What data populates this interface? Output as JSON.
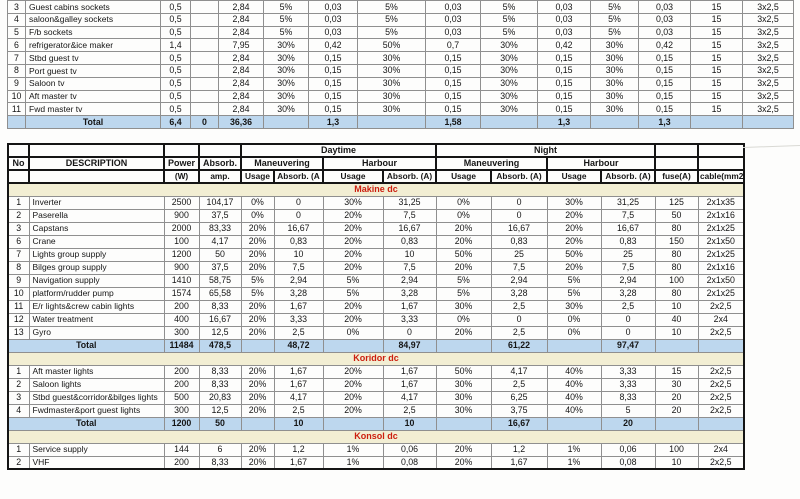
{
  "colors": {
    "total_row_bg": "#bdd7ee",
    "section_band_bg": "#f2eed3",
    "section_title_text": "#cc1e0e",
    "grid_line": "#8f8f8f",
    "table_frame": "#141414"
  },
  "table1": {
    "rows": [
      [
        "3",
        "Guest cabins sockets",
        "0,5",
        "",
        "2,84",
        "5%",
        "0,03",
        "5%",
        "0,03",
        "5%",
        "0,03",
        "5%",
        "0,03",
        "15",
        "3x2,5"
      ],
      [
        "4",
        "saloon&galley sockets",
        "0,5",
        "",
        "2,84",
        "5%",
        "0,03",
        "5%",
        "0,03",
        "5%",
        "0,03",
        "5%",
        "0,03",
        "15",
        "3x2,5"
      ],
      [
        "5",
        "F/b sockets",
        "0,5",
        "",
        "2,84",
        "5%",
        "0,03",
        "5%",
        "0,03",
        "5%",
        "0,03",
        "5%",
        "0,03",
        "15",
        "3x2,5"
      ],
      [
        "6",
        "refrigerator&ice maker",
        "1,4",
        "",
        "7,95",
        "30%",
        "0,42",
        "50%",
        "0,7",
        "30%",
        "0,42",
        "30%",
        "0,42",
        "15",
        "3x2,5"
      ],
      [
        "7",
        "Stbd guest tv",
        "0,5",
        "",
        "2,84",
        "30%",
        "0,15",
        "30%",
        "0,15",
        "30%",
        "0,15",
        "30%",
        "0,15",
        "15",
        "3x2,5"
      ],
      [
        "8",
        "Port guest tv",
        "0,5",
        "",
        "2,84",
        "30%",
        "0,15",
        "30%",
        "0,15",
        "30%",
        "0,15",
        "30%",
        "0,15",
        "15",
        "3x2,5"
      ],
      [
        "9",
        "Saloon tv",
        "0,5",
        "",
        "2,84",
        "30%",
        "0,15",
        "30%",
        "0,15",
        "30%",
        "0,15",
        "30%",
        "0,15",
        "15",
        "3x2,5"
      ],
      [
        "10",
        "Aft master tv",
        "0,5",
        "",
        "2,84",
        "30%",
        "0,15",
        "30%",
        "0,15",
        "30%",
        "0,15",
        "30%",
        "0,15",
        "15",
        "3x2,5"
      ],
      [
        "11",
        "Fwd master tv",
        "0,5",
        "",
        "2,84",
        "30%",
        "0,15",
        "30%",
        "0,15",
        "30%",
        "0,15",
        "30%",
        "0,15",
        "15",
        "3x2,5"
      ]
    ],
    "total": [
      "",
      "Total",
      "6,4",
      "0",
      "36,36",
      "",
      "1,3",
      "",
      "1,58",
      "",
      "1,3",
      "",
      "1,3",
      "",
      ""
    ]
  },
  "table2": {
    "header": {
      "daytime": "Daytime",
      "night": "Night",
      "no": "No",
      "description": "DESCRIPTION",
      "power": "Power",
      "power_unit": "(W)",
      "absorb": "Absorb.",
      "absorb_unit": "amp.",
      "maneuvering": "Maneuvering",
      "harbour": "Harbour",
      "usage": "Usage",
      "absorb_a_first": "Absorb. (A",
      "absorb_a": "Absorb. (A)",
      "fuse": "fuse(A)",
      "cable": "cable(mm2)"
    },
    "sections": [
      {
        "title": "Makine dc",
        "rows": [
          [
            "1",
            "Inverter",
            "2500",
            "104,17",
            "0%",
            "0",
            "30%",
            "31,25",
            "0%",
            "0",
            "30%",
            "31,25",
            "125",
            "2x1x35"
          ],
          [
            "2",
            "Paserella",
            "900",
            "37,5",
            "0%",
            "0",
            "20%",
            "7,5",
            "0%",
            "0",
            "20%",
            "7,5",
            "50",
            "2x1x16"
          ],
          [
            "3",
            "Capstans",
            "2000",
            "83,33",
            "20%",
            "16,67",
            "20%",
            "16,67",
            "20%",
            "16,67",
            "20%",
            "16,67",
            "80",
            "2x1x25"
          ],
          [
            "6",
            "Crane",
            "100",
            "4,17",
            "20%",
            "0,83",
            "20%",
            "0,83",
            "20%",
            "0,83",
            "20%",
            "0,83",
            "150",
            "2x1x50"
          ],
          [
            "7",
            "Lights group supply",
            "1200",
            "50",
            "20%",
            "10",
            "20%",
            "10",
            "50%",
            "25",
            "50%",
            "25",
            "80",
            "2x1x25"
          ],
          [
            "8",
            "Bilges group supply",
            "900",
            "37,5",
            "20%",
            "7,5",
            "20%",
            "7,5",
            "20%",
            "7,5",
            "20%",
            "7,5",
            "80",
            "2x1x16"
          ],
          [
            "9",
            "Navigation supply",
            "1410",
            "58,75",
            "5%",
            "2,94",
            "5%",
            "2,94",
            "5%",
            "2,94",
            "5%",
            "2,94",
            "100",
            "2x1x50"
          ],
          [
            "10",
            "platform/rudder pump",
            "1574",
            "65,58",
            "5%",
            "3,28",
            "5%",
            "3,28",
            "5%",
            "3,28",
            "5%",
            "3,28",
            "80",
            "2x1x25"
          ],
          [
            "11",
            "E/r lights&crew cabin lights",
            "200",
            "8,33",
            "20%",
            "1,67",
            "20%",
            "1,67",
            "30%",
            "2,5",
            "30%",
            "2,5",
            "10",
            "2x2,5"
          ],
          [
            "12",
            "Water treatment",
            "400",
            "16,67",
            "20%",
            "3,33",
            "20%",
            "3,33",
            "0%",
            "0",
            "0%",
            "0",
            "40",
            "2x4"
          ],
          [
            "13",
            "Gyro",
            "300",
            "12,5",
            "20%",
            "2,5",
            "0%",
            "0",
            "20%",
            "2,5",
            "0%",
            "0",
            "10",
            "2x2,5"
          ]
        ],
        "total": [
          "Total",
          "11484",
          "478,5",
          "",
          "48,72",
          "",
          "84,97",
          "",
          "61,22",
          "",
          "97,47",
          "",
          ""
        ]
      },
      {
        "title": "Koridor dc",
        "rows": [
          [
            "1",
            "Aft master lights",
            "200",
            "8,33",
            "20%",
            "1,67",
            "20%",
            "1,67",
            "50%",
            "4,17",
            "40%",
            "3,33",
            "15",
            "2x2,5"
          ],
          [
            "2",
            "Saloon lights",
            "200",
            "8,33",
            "20%",
            "1,67",
            "20%",
            "1,67",
            "30%",
            "2,5",
            "40%",
            "3,33",
            "30",
            "2x2,5"
          ],
          [
            "3",
            "Stbd guest&corridor&bilges lights",
            "500",
            "20,83",
            "20%",
            "4,17",
            "20%",
            "4,17",
            "30%",
            "6,25",
            "40%",
            "8,33",
            "20",
            "2x2,5"
          ],
          [
            "4",
            "Fwdmaster&port guest lights",
            "300",
            "12,5",
            "20%",
            "2,5",
            "20%",
            "2,5",
            "30%",
            "3,75",
            "40%",
            "5",
            "20",
            "2x2,5"
          ]
        ],
        "total": [
          "Total",
          "1200",
          "50",
          "",
          "10",
          "",
          "10",
          "",
          "16,67",
          "",
          "20",
          "",
          ""
        ]
      },
      {
        "title": "Konsol dc",
        "rows": [
          [
            "1",
            "Service supply",
            "144",
            "6",
            "20%",
            "1,2",
            "1%",
            "0,06",
            "20%",
            "1,2",
            "1%",
            "0,06",
            "100",
            "2x4"
          ],
          [
            "2",
            "VHF",
            "200",
            "8,33",
            "20%",
            "1,67",
            "1%",
            "0,08",
            "20%",
            "1,67",
            "1%",
            "0,08",
            "10",
            "2x2,5"
          ]
        ],
        "total": null
      }
    ]
  }
}
